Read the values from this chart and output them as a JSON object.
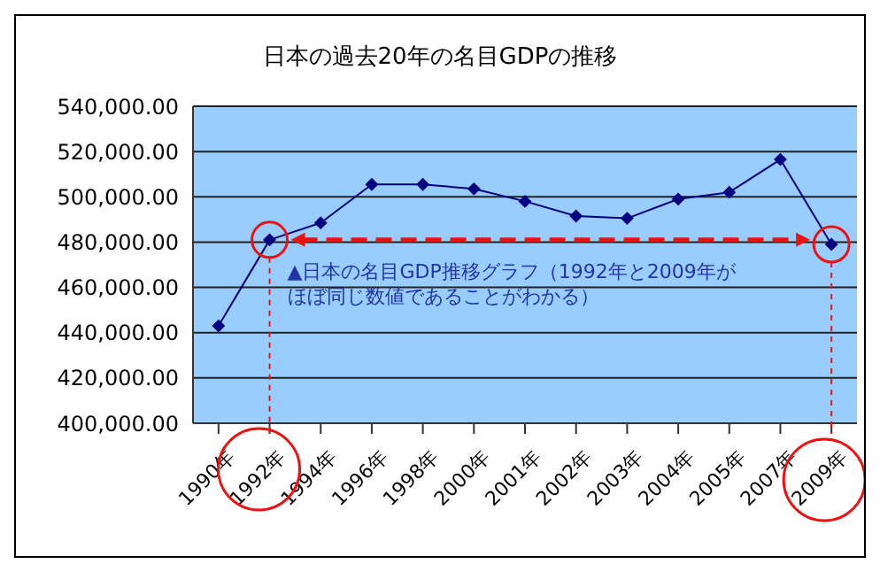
{
  "chart_data": {
    "type": "line",
    "title": "日本の過去20年の名目GDPの推移",
    "categories": [
      "1990年",
      "1992年",
      "1994年",
      "1996年",
      "1998年",
      "2000年",
      "2001年",
      "2002年",
      "2003年",
      "2004年",
      "2005年",
      "2007年",
      "2009年"
    ],
    "series": [
      {
        "color": "#000080",
        "values": [
          443000,
          481000,
          488500,
          505500,
          505500,
          503500,
          498000,
          491500,
          490500,
          499000,
          502000,
          516500,
          479000
        ]
      }
    ],
    "ylim": [
      400000,
      540000
    ],
    "yticks": [
      {
        "value": 400000,
        "label": "400,000.00"
      },
      {
        "value": 420000,
        "label": "420,000.00"
      },
      {
        "value": 440000,
        "label": "440,000.00"
      },
      {
        "value": 460000,
        "label": "460,000.00"
      },
      {
        "value": 480000,
        "label": "480,000.00"
      },
      {
        "value": 500000,
        "label": "500,000.00"
      },
      {
        "value": 520000,
        "label": "520,000.00"
      },
      {
        "value": 540000,
        "label": "540,000.00"
      }
    ],
    "grid": "y",
    "legend": false,
    "marker": "diamond",
    "line_style": "solid",
    "annotations": [
      "▲日本の名目GDP推移グラフ（1992年と2009年がほぼ同じ数値であることがわかる）"
    ]
  }
}
